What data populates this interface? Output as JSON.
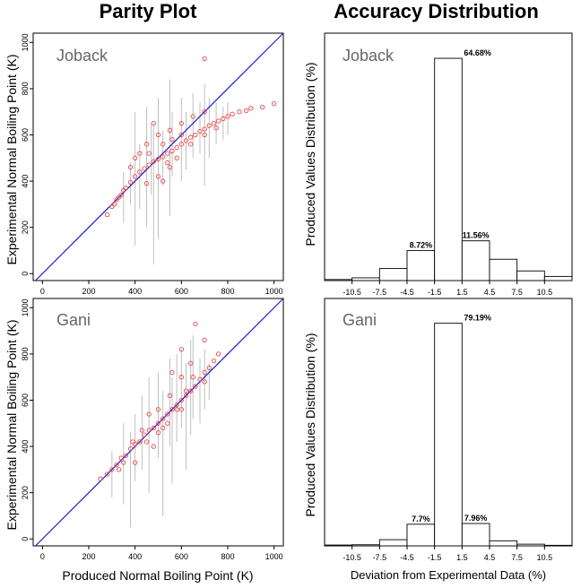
{
  "titles": {
    "parity": "Parity Plot",
    "accuracy": "Accuracy Distribution"
  },
  "labels": {
    "parity_ylabel": "Experimental Normal Boiling Point (K)",
    "parity_xlabel": "Produced Normal Boiling Point (K)",
    "acc_ylabel": "Produced Values Distribution (%)",
    "acc_xlabel": "Deviation from Experimental Data (%)"
  },
  "colors": {
    "diagonal": "#1a1ad6",
    "points": "#e8474a",
    "errorbars": "#bfbfbf",
    "bars": "#000000"
  },
  "chart_data": [
    {
      "type": "scatter",
      "panel": "Joback",
      "xlim": [
        -40,
        1040
      ],
      "ylim": [
        -30,
        1040
      ],
      "xticks": [
        0,
        200,
        400,
        600,
        800,
        1000
      ],
      "yticks": [
        0,
        200,
        400,
        600,
        800,
        1000
      ],
      "reference_line": "y = x",
      "points": [
        [
          280,
          255
        ],
        [
          300,
          290
        ],
        [
          320,
          320
        ],
        [
          340,
          340
        ],
        [
          360,
          370
        ],
        [
          380,
          395
        ],
        [
          400,
          420
        ],
        [
          420,
          440
        ],
        [
          440,
          455
        ],
        [
          460,
          470
        ],
        [
          480,
          485
        ],
        [
          500,
          495
        ],
        [
          520,
          505
        ],
        [
          540,
          520
        ],
        [
          560,
          530
        ],
        [
          580,
          545
        ],
        [
          600,
          560
        ],
        [
          620,
          575
        ],
        [
          640,
          590
        ],
        [
          660,
          600
        ],
        [
          680,
          615
        ],
        [
          700,
          625
        ],
        [
          720,
          640
        ],
        [
          740,
          650
        ],
        [
          760,
          660
        ],
        [
          780,
          670
        ],
        [
          800,
          680
        ],
        [
          820,
          690
        ],
        [
          850,
          700
        ],
        [
          880,
          705
        ],
        [
          900,
          715
        ],
        [
          950,
          720
        ],
        [
          1000,
          735
        ],
        [
          400,
          500
        ],
        [
          450,
          560
        ],
        [
          500,
          600
        ],
        [
          550,
          620
        ],
        [
          600,
          650
        ],
        [
          650,
          680
        ],
        [
          700,
          930
        ],
        [
          700,
          700
        ],
        [
          450,
          390
        ],
        [
          500,
          420
        ],
        [
          550,
          460
        ],
        [
          480,
          650
        ],
        [
          420,
          520
        ],
        [
          380,
          460
        ],
        [
          350,
          360
        ],
        [
          330,
          330
        ],
        [
          310,
          300
        ],
        [
          520,
          560
        ],
        [
          560,
          580
        ],
        [
          600,
          600
        ],
        [
          640,
          560
        ],
        [
          700,
          600
        ],
        [
          750,
          630
        ],
        [
          520,
          400
        ],
        [
          460,
          520
        ],
        [
          540,
          480
        ],
        [
          580,
          500
        ]
      ],
      "error_bars": [
        [
          400,
          120,
          700
        ],
        [
          450,
          200,
          720
        ],
        [
          500,
          150,
          760
        ],
        [
          520,
          380,
          620
        ],
        [
          550,
          250,
          840
        ],
        [
          600,
          400,
          760
        ],
        [
          620,
          450,
          700
        ],
        [
          650,
          500,
          780
        ],
        [
          680,
          520,
          740
        ],
        [
          700,
          380,
          820
        ],
        [
          720,
          500,
          760
        ],
        [
          750,
          560,
          740
        ],
        [
          780,
          580,
          720
        ],
        [
          800,
          600,
          740
        ],
        [
          350,
          220,
          440
        ],
        [
          380,
          300,
          480
        ],
        [
          420,
          280,
          560
        ],
        [
          470,
          340,
          650
        ],
        [
          560,
          420,
          700
        ],
        [
          480,
          40,
          640
        ]
      ]
    },
    {
      "type": "scatter",
      "panel": "Gani",
      "xlim": [
        -40,
        1040
      ],
      "ylim": [
        -30,
        1040
      ],
      "xticks": [
        0,
        200,
        400,
        600,
        800,
        1000
      ],
      "yticks": [
        0,
        200,
        400,
        600,
        800,
        1000
      ],
      "reference_line": "y = x",
      "points": [
        [
          250,
          260
        ],
        [
          280,
          280
        ],
        [
          300,
          300
        ],
        [
          320,
          320
        ],
        [
          340,
          350
        ],
        [
          360,
          360
        ],
        [
          380,
          390
        ],
        [
          400,
          410
        ],
        [
          420,
          420
        ],
        [
          440,
          450
        ],
        [
          460,
          470
        ],
        [
          480,
          480
        ],
        [
          500,
          500
        ],
        [
          520,
          520
        ],
        [
          540,
          540
        ],
        [
          560,
          560
        ],
        [
          580,
          580
        ],
        [
          600,
          600
        ],
        [
          620,
          620
        ],
        [
          640,
          640
        ],
        [
          660,
          660
        ],
        [
          680,
          690
        ],
        [
          700,
          720
        ],
        [
          720,
          740
        ],
        [
          740,
          770
        ],
        [
          760,
          800
        ],
        [
          660,
          930
        ],
        [
          600,
          700
        ],
        [
          550,
          620
        ],
        [
          500,
          560
        ],
        [
          450,
          420
        ],
        [
          520,
          480
        ],
        [
          580,
          560
        ],
        [
          620,
          640
        ],
        [
          480,
          400
        ],
        [
          400,
          330
        ],
        [
          350,
          330
        ],
        [
          560,
          720
        ],
        [
          600,
          820
        ],
        [
          700,
          860
        ],
        [
          640,
          760
        ],
        [
          540,
          500
        ],
        [
          460,
          540
        ],
        [
          500,
          460
        ],
        [
          430,
          470
        ],
        [
          600,
          560
        ],
        [
          650,
          700
        ],
        [
          700,
          680
        ],
        [
          390,
          420
        ],
        [
          330,
          300
        ]
      ],
      "error_bars": [
        [
          350,
          150,
          500
        ],
        [
          400,
          250,
          540
        ],
        [
          430,
          300,
          620
        ],
        [
          460,
          200,
          700
        ],
        [
          500,
          350,
          720
        ],
        [
          520,
          100,
          640
        ],
        [
          550,
          400,
          780
        ],
        [
          580,
          420,
          800
        ],
        [
          600,
          480,
          820
        ],
        [
          620,
          300,
          760
        ],
        [
          650,
          520,
          880
        ],
        [
          680,
          500,
          780
        ],
        [
          700,
          560,
          820
        ],
        [
          720,
          600,
          760
        ],
        [
          380,
          50,
          460
        ],
        [
          300,
          180,
          380
        ],
        [
          560,
          240,
          700
        ],
        [
          640,
          450,
          860
        ]
      ]
    },
    {
      "type": "bar",
      "panel": "Joback",
      "bin_edges": [
        -10.5,
        -7.5,
        -4.5,
        -1.5,
        1.5,
        4.5,
        7.5,
        10.5
      ],
      "xticks": [
        -10.5,
        -7.5,
        -4.5,
        -1.5,
        1.5,
        4.5,
        7.5,
        10.5
      ],
      "bins": [
        {
          "from": -13.5,
          "to": -10.5,
          "value": 0.3
        },
        {
          "from": -10.5,
          "to": -7.5,
          "value": 0.8
        },
        {
          "from": -7.5,
          "to": -4.5,
          "value": 3.5
        },
        {
          "from": -4.5,
          "to": -1.5,
          "value": 8.72,
          "label": "8.72%"
        },
        {
          "from": -1.5,
          "to": 1.5,
          "value": 64.68,
          "label": "64.68%"
        },
        {
          "from": 1.5,
          "to": 4.5,
          "value": 11.56,
          "label": "11.56%"
        },
        {
          "from": 4.5,
          "to": 7.5,
          "value": 6.2
        },
        {
          "from": 7.5,
          "to": 10.5,
          "value": 2.8
        },
        {
          "from": 10.5,
          "to": 13.5,
          "value": 1.2
        }
      ],
      "ylim": [
        0,
        72
      ]
    },
    {
      "type": "bar",
      "panel": "Gani",
      "bin_edges": [
        -10.5,
        -7.5,
        -4.5,
        -1.5,
        1.5,
        4.5,
        7.5,
        10.5
      ],
      "xticks": [
        -10.5,
        -7.5,
        -4.5,
        -1.5,
        1.5,
        4.5,
        7.5,
        10.5
      ],
      "bins": [
        {
          "from": -13.5,
          "to": -10.5,
          "value": 0.3
        },
        {
          "from": -10.5,
          "to": -7.5,
          "value": 0.4
        },
        {
          "from": -7.5,
          "to": -4.5,
          "value": 2.2
        },
        {
          "from": -4.5,
          "to": -1.5,
          "value": 7.7,
          "label": "7.7%"
        },
        {
          "from": -1.5,
          "to": 1.5,
          "value": 79.19,
          "label": "79.19%"
        },
        {
          "from": 1.5,
          "to": 4.5,
          "value": 7.96,
          "label": "7.96%"
        },
        {
          "from": 4.5,
          "to": 7.5,
          "value": 1.8
        },
        {
          "from": 7.5,
          "to": 10.5,
          "value": 0.6
        },
        {
          "from": 10.5,
          "to": 13.5,
          "value": 0.2
        }
      ],
      "ylim": [
        0,
        88
      ]
    }
  ]
}
